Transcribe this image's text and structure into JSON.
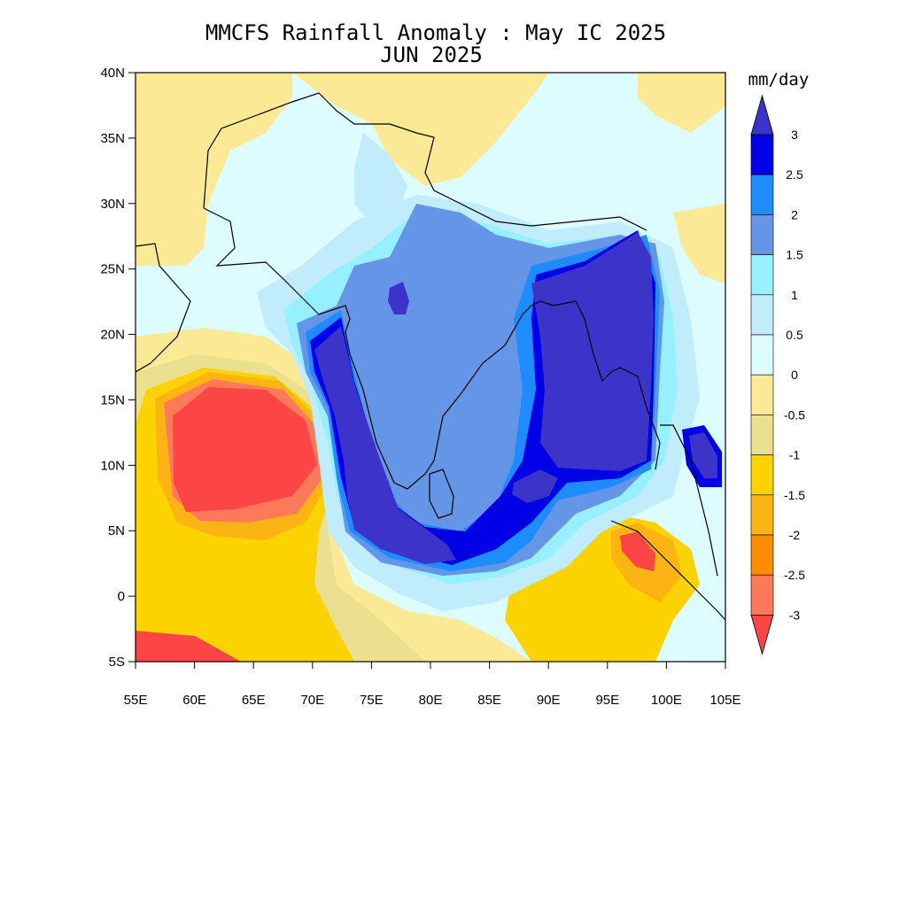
{
  "title_line1": "MMCFS Rainfall Anomaly : May IC 2025",
  "title_line2": "JUN 2025",
  "map": {
    "lon_range": [
      55,
      105
    ],
    "lat_range": [
      -5,
      40
    ],
    "lat_ticks": [
      "40N",
      "35N",
      "30N",
      "25N",
      "20N",
      "15N",
      "10N",
      "5N",
      "0",
      "5S"
    ],
    "lon_ticks": [
      "55E",
      "60E",
      "65E",
      "70E",
      "75E",
      "80E",
      "85E",
      "90E",
      "95E",
      "100E",
      "105E"
    ]
  },
  "colorbar": {
    "units": "mm/day",
    "labels": [
      "3",
      "2.5",
      "2",
      "1.5",
      "1",
      "0.5",
      "0",
      "-0.5",
      "-1",
      "-1.5",
      "-2",
      "-2.5",
      "-3"
    ],
    "colors": {
      "above_3": "#3c34c8",
      "c_2_5_3": "#0000e6",
      "c_2_2_5": "#1e8cff",
      "c_1_5_2": "#6495e6",
      "c_1_1_5": "#96f0ff",
      "c_0_5_1": "#c0ecfc",
      "c_0_0_5": "#dcfcff",
      "c_m0_5_0": "#fce996",
      "c_m1_m0_5": "#ebe08f",
      "c_m1_5_m1": "#fcd200",
      "c_m2_m1_5": "#fcb414",
      "c_m2_5_m2": "#fc8c00",
      "c_m3_m2_5": "#fc7a5a",
      "below_m3": "#fc4646"
    }
  }
}
